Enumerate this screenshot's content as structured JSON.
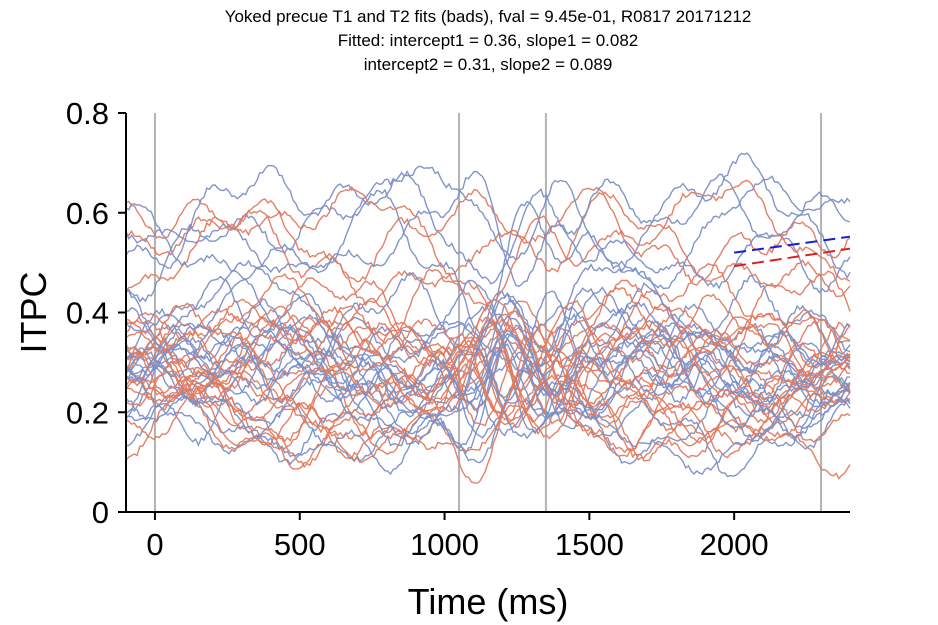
{
  "chart_data": {
    "type": "line",
    "title_lines": [
      "Yoked precue T1 and T2 fits (bads), fval = 9.45e-01, R0817 20171212",
      "Fitted: intercept1 = 0.36, slope1 = 0.082",
      "intercept2 = 0.31, slope2 = 0.089"
    ],
    "xlabel": "Time (ms)",
    "ylabel": "ITPC",
    "xlim": [
      -100,
      2400
    ],
    "ylim": [
      0,
      0.8
    ],
    "xticks": [
      0,
      500,
      1000,
      1500,
      2000
    ],
    "xtick_labels": [
      "0",
      "500",
      "1000",
      "1500",
      "2000"
    ],
    "yticks": [
      0,
      0.2,
      0.4,
      0.6,
      0.8
    ],
    "ytick_labels": [
      "0",
      "0.2",
      "0.4",
      "0.6",
      "0.8"
    ],
    "event_lines_ms": [
      0,
      1050,
      1350,
      2300
    ],
    "trace_groups": [
      {
        "name": "T1 channels",
        "color": "#7b8fc7",
        "count": 22
      },
      {
        "name": "T2 channels",
        "color": "#e07a5f",
        "count": 22
      }
    ],
    "fit_lines": [
      {
        "name": "T1 fit",
        "color": "#1a1adb",
        "x": [
          2000,
          2400
        ],
        "y": [
          0.52,
          0.552
        ]
      },
      {
        "name": "T2 fit",
        "color": "#d92121",
        "x": [
          2000,
          2400
        ],
        "y": [
          0.493,
          0.528
        ]
      }
    ],
    "colors": {
      "axis": "#000000",
      "event_line": "#b3b3b3"
    }
  }
}
